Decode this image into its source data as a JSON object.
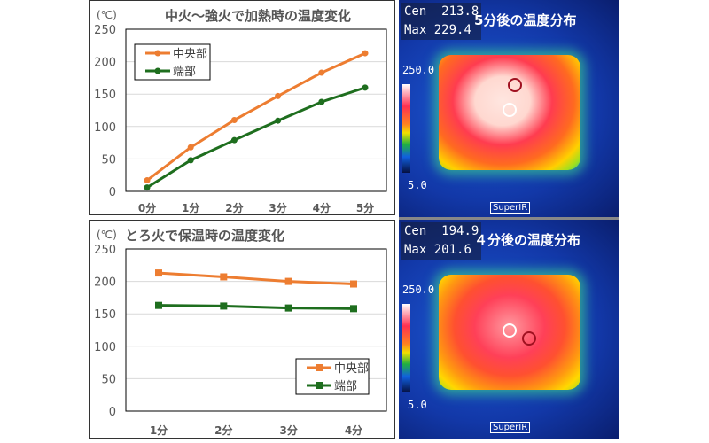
{
  "chart_data": [
    {
      "type": "line",
      "title": "中火～強火で加熱時の温度変化",
      "ylabel": "(℃)",
      "ylim": [
        0,
        250
      ],
      "yticks": [
        0,
        50,
        100,
        150,
        200,
        250
      ],
      "categories": [
        "0分",
        "1分",
        "2分",
        "3分",
        "4分",
        "5分"
      ],
      "grid": true,
      "legend_position": "top-left",
      "marker": "circle",
      "series": [
        {
          "name": "中央部",
          "color": "#ed7d31",
          "values": [
            17,
            68,
            110,
            147,
            183,
            213
          ]
        },
        {
          "name": "端部",
          "color": "#1e6e1e",
          "values": [
            6,
            48,
            79,
            109,
            138,
            160
          ]
        }
      ]
    },
    {
      "type": "line",
      "title": "とろ火で保温時の温度変化",
      "ylabel": "(℃)",
      "ylim": [
        0,
        250
      ],
      "yticks": [
        0,
        50,
        100,
        150,
        200,
        250
      ],
      "categories": [
        "1分",
        "2分",
        "3分",
        "4分"
      ],
      "grid": true,
      "legend_position": "bottom-right",
      "marker": "square",
      "series": [
        {
          "name": "中央部",
          "color": "#ed7d31",
          "values": [
            213,
            207,
            200,
            196
          ]
        },
        {
          "name": "端部",
          "color": "#1e6e1e",
          "values": [
            163,
            162,
            159,
            158
          ]
        }
      ]
    }
  ],
  "thermal": [
    {
      "cen_label": "Cen",
      "cen": "213.8",
      "max_label": "Max",
      "max": "229.4",
      "title": "5分後の温度分布",
      "scale_max": "250.0",
      "scale_min": "5.0",
      "brand": "SuperIR"
    },
    {
      "cen_label": "Cen",
      "cen": "194.9",
      "max_label": "Max",
      "max": "201.6",
      "title": "４分後の温度分布",
      "scale_max": "250.0",
      "scale_min": "5.0",
      "brand": "SuperIR"
    }
  ]
}
